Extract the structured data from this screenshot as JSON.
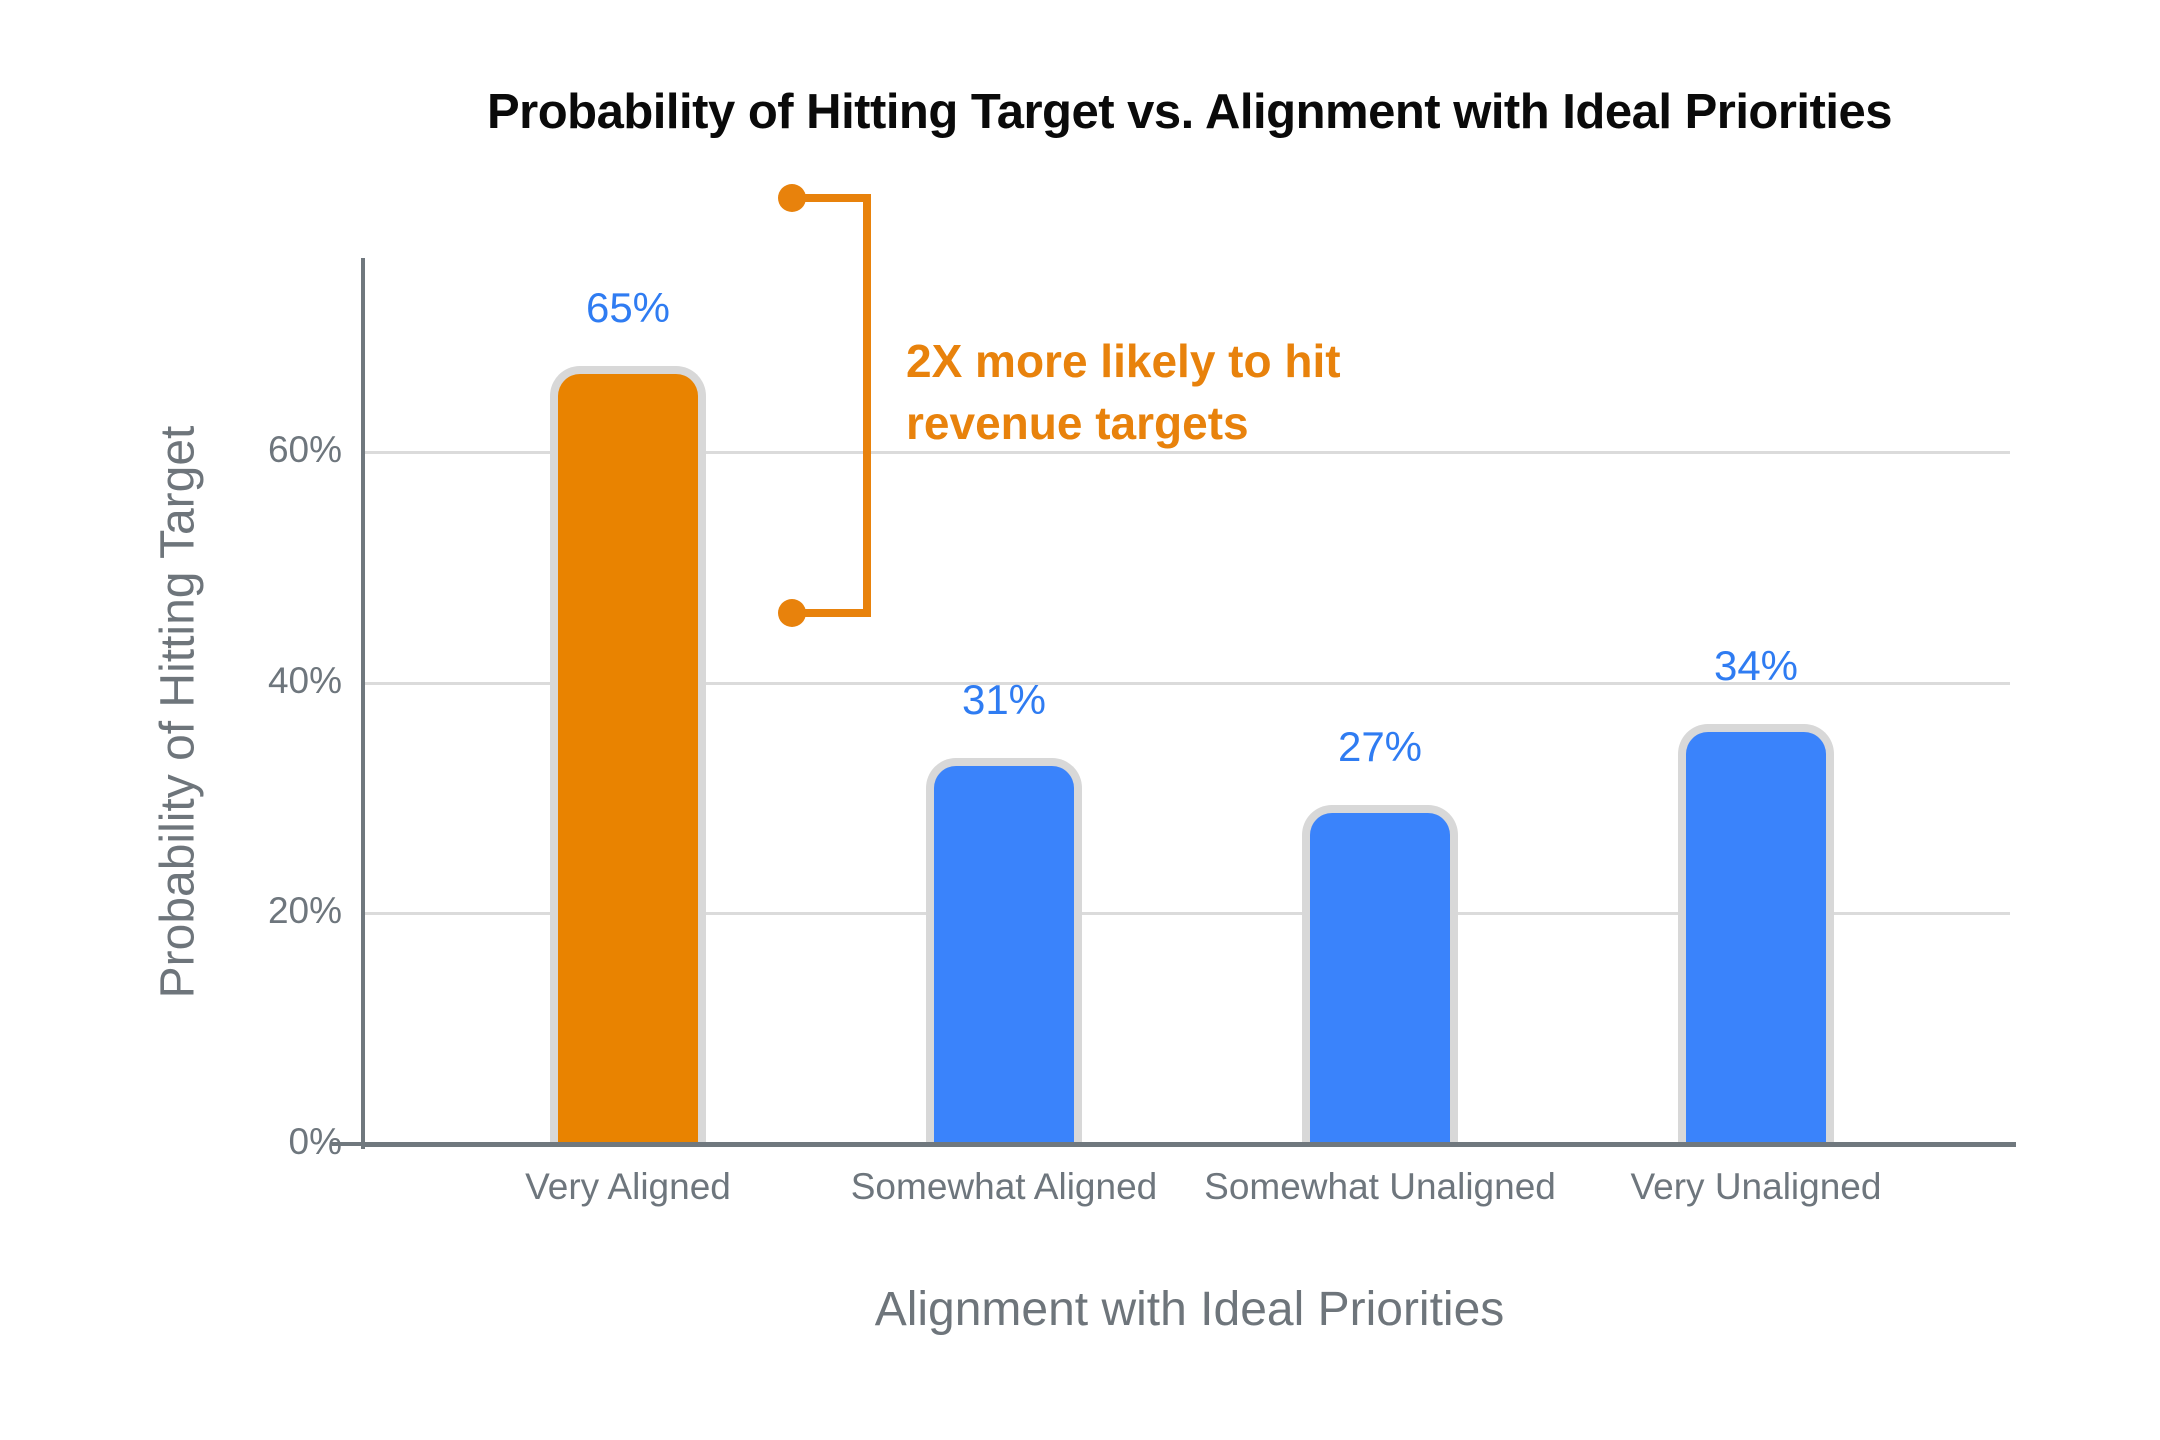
{
  "chart_data": {
    "type": "bar",
    "title": "Probability of Hitting Target vs. Alignment with Ideal Priorities",
    "xlabel": "Alignment with Ideal Priorities",
    "ylabel": "Probability of Hitting Target",
    "categories": [
      "Very Aligned",
      "Somewhat Aligned",
      "Somewhat Unaligned",
      "Very Unaligned"
    ],
    "values": [
      65,
      31,
      27,
      34
    ],
    "value_labels": [
      "65%",
      "31%",
      "27%",
      "34%"
    ],
    "yticks": [
      0,
      20,
      40,
      60
    ],
    "ytick_labels": [
      "0%",
      "20%",
      "40%",
      "60%"
    ],
    "ylim": [
      0,
      77
    ],
    "grid": true,
    "legend_position": "none",
    "highlight_index": 0,
    "bar_colors": {
      "highlight": "#E98300",
      "default": "#3A83FB"
    },
    "annotation": {
      "line1": "2X more likely to hit",
      "line2": "revenue targets",
      "color": "#E8820C",
      "bracket_top_pct": 82,
      "bracket_bottom_pct": 46
    },
    "colors": {
      "value_label": "#2F7CF2",
      "bar_outline": "#D8D8D8",
      "axis_line": "#70787E",
      "gridline": "#DBDBDB",
      "tick_text": "#6E767D",
      "axis_title_text": "#6E757B",
      "title_text": "#0A0A0A",
      "background": "#FFFFFF"
    }
  }
}
